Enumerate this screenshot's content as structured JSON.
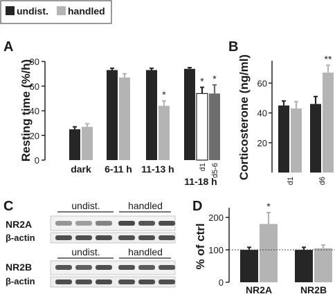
{
  "legend": {
    "items": [
      {
        "label": "undist.",
        "color": "#262626"
      },
      {
        "label": "handled",
        "color": "#b4b4b4"
      }
    ]
  },
  "panels": {
    "A": {
      "letter": "A"
    },
    "B": {
      "letter": "B"
    },
    "C": {
      "letter": "C",
      "blot1": {
        "group_labels": [
          "undist.",
          "handled"
        ],
        "row_labels": [
          "NR2A",
          "β-actin"
        ]
      },
      "blot2": {
        "group_labels": [
          "undist.",
          "handled"
        ],
        "row_labels": [
          "NR2B",
          "β-actin"
        ]
      }
    },
    "D": {
      "letter": "D"
    }
  },
  "chart_data": [
    {
      "panel": "A",
      "type": "bar",
      "ylabel": "Resting time (%/h)",
      "ylim": [
        0,
        80
      ],
      "yticks": [
        0,
        20,
        40,
        60,
        80
      ],
      "groups": [
        {
          "label": "dark",
          "bars": [
            {
              "series": "undist.",
              "value": 25,
              "error": 2,
              "sig": ""
            },
            {
              "series": "handled",
              "value": 27,
              "error": 2.5,
              "sig": ""
            }
          ]
        },
        {
          "label": "6-11 h",
          "bars": [
            {
              "series": "undist.",
              "value": 73,
              "error": 1.5,
              "sig": ""
            },
            {
              "series": "handled",
              "value": 67,
              "error": 3,
              "sig": ""
            }
          ]
        },
        {
          "label": "11-13 h",
          "bars": [
            {
              "series": "undist.",
              "value": 73,
              "error": 1.5,
              "sig": ""
            },
            {
              "series": "handled",
              "value": 44,
              "error": 4,
              "sig": "*"
            }
          ]
        },
        {
          "label": "11-18 h",
          "sublabels": [
            "d1",
            "d5-6"
          ],
          "bars": [
            {
              "series": "undist.",
              "value": 74,
              "error": 1,
              "sig": ""
            },
            {
              "series": "handled d1",
              "value": 54,
              "error": 5,
              "sig": "*",
              "color": "#ffffff"
            },
            {
              "series": "handled d5-6",
              "value": 54,
              "error": 7,
              "sig": "*",
              "color": "#6e6e6e"
            }
          ]
        }
      ]
    },
    {
      "panel": "B",
      "type": "bar",
      "ylabel": "Corticosterone (ng/ml)",
      "ylim": [
        0,
        75
      ],
      "yticks": [
        20,
        40,
        60
      ],
      "groups": [
        {
          "label": "d1",
          "bars": [
            {
              "series": "undist.",
              "value": 45,
              "error": 3,
              "sig": ""
            },
            {
              "series": "handled",
              "value": 43,
              "error": 4.5,
              "sig": ""
            }
          ]
        },
        {
          "label": "d6",
          "bars": [
            {
              "series": "undist.",
              "value": 46,
              "error": 5,
              "sig": ""
            },
            {
              "series": "handled",
              "value": 67,
              "error": 5,
              "sig": "**"
            }
          ]
        }
      ]
    },
    {
      "panel": "D",
      "type": "bar",
      "ylabel": "% of ctrl",
      "ylim": [
        0,
        230
      ],
      "yticks": [
        0,
        100,
        200
      ],
      "reference_line": 100,
      "groups": [
        {
          "label": "NR2A",
          "bars": [
            {
              "series": "undist.",
              "value": 100,
              "error": 8,
              "sig": ""
            },
            {
              "series": "handled",
              "value": 180,
              "error": 35,
              "sig": "*"
            }
          ]
        },
        {
          "label": "NR2B",
          "bars": [
            {
              "series": "undist.",
              "value": 100,
              "error": 8,
              "sig": ""
            },
            {
              "series": "handled",
              "value": 105,
              "error": 10,
              "sig": ""
            }
          ]
        }
      ]
    }
  ]
}
